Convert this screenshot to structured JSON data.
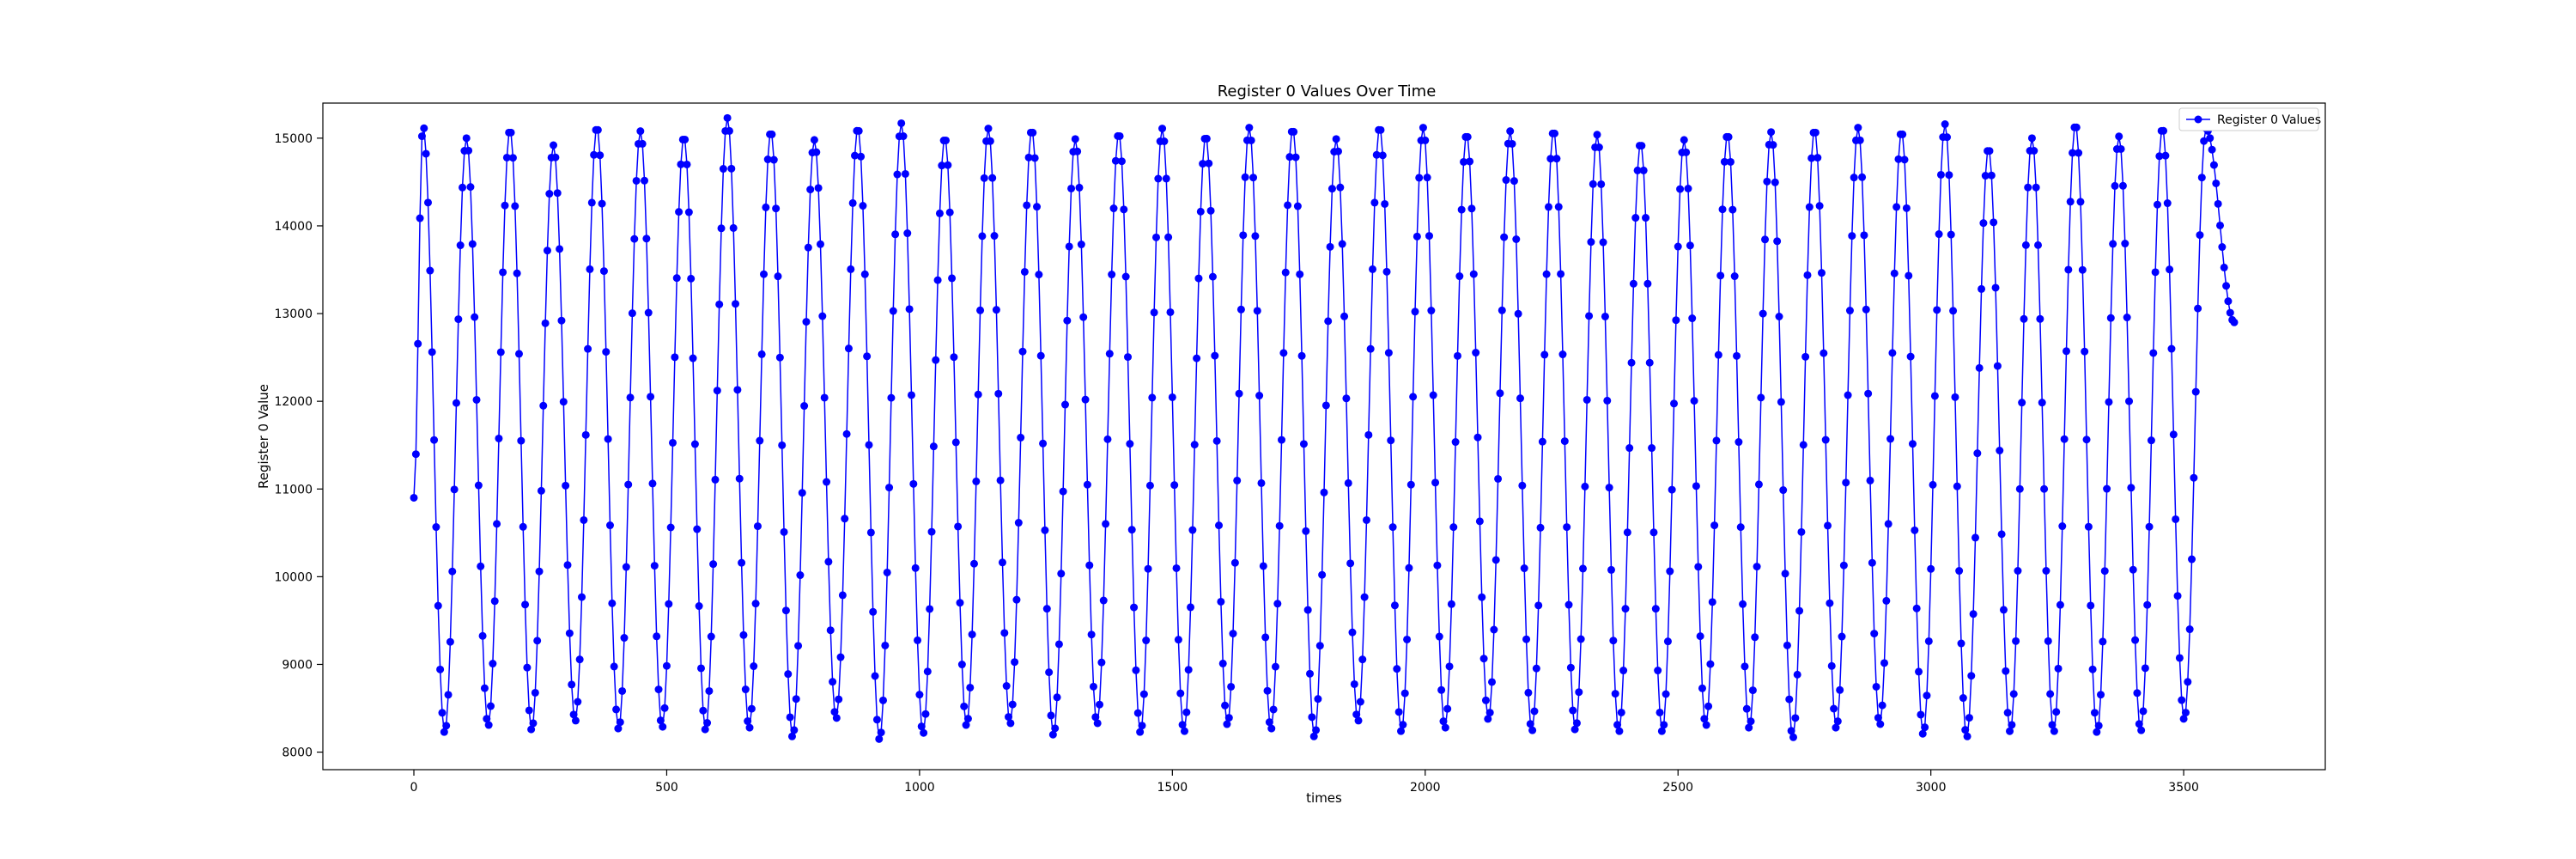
{
  "chart_data": {
    "type": "line",
    "title": "Register 0 Values Over Time",
    "xlabel": "times",
    "ylabel": "Register 0 Value",
    "xlim": [
      -180,
      3780
    ],
    "ylim": [
      7800,
      15400
    ],
    "xticks": [
      0,
      500,
      1000,
      1500,
      2000,
      2500,
      3000,
      3500
    ],
    "yticks": [
      8000,
      9000,
      10000,
      11000,
      12000,
      13000,
      14000,
      15000
    ],
    "grid": false,
    "legend_position": "top-right",
    "marker": "circle",
    "color": "#0000ff",
    "period": 86.2,
    "x_start": 0,
    "x_end": 3600,
    "step": 4,
    "series": [
      {
        "name": "Register 0 Values",
        "peaks": [
          {
            "x": 18,
            "y": 15150
          },
          {
            "x": 104,
            "y": 15000
          },
          {
            "x": 190,
            "y": 15100
          },
          {
            "x": 276,
            "y": 14920
          },
          {
            "x": 362,
            "y": 15130
          },
          {
            "x": 448,
            "y": 15080
          },
          {
            "x": 534,
            "y": 15020
          },
          {
            "x": 620,
            "y": 15230
          },
          {
            "x": 706,
            "y": 15080
          },
          {
            "x": 792,
            "y": 14980
          },
          {
            "x": 878,
            "y": 15120
          },
          {
            "x": 964,
            "y": 15170
          },
          {
            "x": 1050,
            "y": 15010
          },
          {
            "x": 1136,
            "y": 15110
          },
          {
            "x": 1222,
            "y": 15100
          },
          {
            "x": 1308,
            "y": 14990
          },
          {
            "x": 1394,
            "y": 15060
          },
          {
            "x": 1480,
            "y": 15110
          },
          {
            "x": 1566,
            "y": 15030
          },
          {
            "x": 1652,
            "y": 15120
          },
          {
            "x": 1738,
            "y": 15110
          },
          {
            "x": 1824,
            "y": 14990
          },
          {
            "x": 1910,
            "y": 15130
          },
          {
            "x": 1996,
            "y": 15120
          },
          {
            "x": 2082,
            "y": 15050
          },
          {
            "x": 2168,
            "y": 15080
          },
          {
            "x": 2254,
            "y": 15090
          },
          {
            "x": 2340,
            "y": 15040
          },
          {
            "x": 2426,
            "y": 14950
          },
          {
            "x": 2512,
            "y": 14980
          },
          {
            "x": 2598,
            "y": 15050
          },
          {
            "x": 2684,
            "y": 15070
          },
          {
            "x": 2770,
            "y": 15100
          },
          {
            "x": 2856,
            "y": 15120
          },
          {
            "x": 2942,
            "y": 15080
          },
          {
            "x": 3028,
            "y": 15160
          },
          {
            "x": 3114,
            "y": 14890
          },
          {
            "x": 3200,
            "y": 15000
          },
          {
            "x": 3286,
            "y": 15160
          },
          {
            "x": 3372,
            "y": 15020
          },
          {
            "x": 3458,
            "y": 15120
          },
          {
            "x": 3544,
            "y": 15110
          }
        ],
        "troughs": [
          {
            "x": 61,
            "y": 8220
          },
          {
            "x": 147,
            "y": 8300
          },
          {
            "x": 233,
            "y": 8250
          },
          {
            "x": 319,
            "y": 8350
          },
          {
            "x": 405,
            "y": 8260
          },
          {
            "x": 491,
            "y": 8280
          },
          {
            "x": 577,
            "y": 8250
          },
          {
            "x": 663,
            "y": 8270
          },
          {
            "x": 749,
            "y": 8170
          },
          {
            "x": 835,
            "y": 8380
          },
          {
            "x": 921,
            "y": 8140
          },
          {
            "x": 1007,
            "y": 8210
          },
          {
            "x": 1093,
            "y": 8300
          },
          {
            "x": 1179,
            "y": 8320
          },
          {
            "x": 1265,
            "y": 8190
          },
          {
            "x": 1351,
            "y": 8320
          },
          {
            "x": 1437,
            "y": 8220
          },
          {
            "x": 1523,
            "y": 8230
          },
          {
            "x": 1609,
            "y": 8310
          },
          {
            "x": 1695,
            "y": 8260
          },
          {
            "x": 1781,
            "y": 8170
          },
          {
            "x": 1867,
            "y": 8350
          },
          {
            "x": 1953,
            "y": 8230
          },
          {
            "x": 2039,
            "y": 8270
          },
          {
            "x": 2125,
            "y": 8370
          },
          {
            "x": 2211,
            "y": 8240
          },
          {
            "x": 2297,
            "y": 8250
          },
          {
            "x": 2383,
            "y": 8230
          },
          {
            "x": 2469,
            "y": 8230
          },
          {
            "x": 2555,
            "y": 8300
          },
          {
            "x": 2641,
            "y": 8270
          },
          {
            "x": 2727,
            "y": 8160
          },
          {
            "x": 2813,
            "y": 8270
          },
          {
            "x": 2899,
            "y": 8310
          },
          {
            "x": 2985,
            "y": 8200
          },
          {
            "x": 3071,
            "y": 8170
          },
          {
            "x": 3157,
            "y": 8230
          },
          {
            "x": 3243,
            "y": 8230
          },
          {
            "x": 3329,
            "y": 8220
          },
          {
            "x": 3415,
            "y": 8240
          },
          {
            "x": 3501,
            "y": 8370
          }
        ],
        "first_point": {
          "x": 0,
          "y": 10900
        },
        "last_point": {
          "x": 3600,
          "y": 12900
        }
      }
    ]
  }
}
